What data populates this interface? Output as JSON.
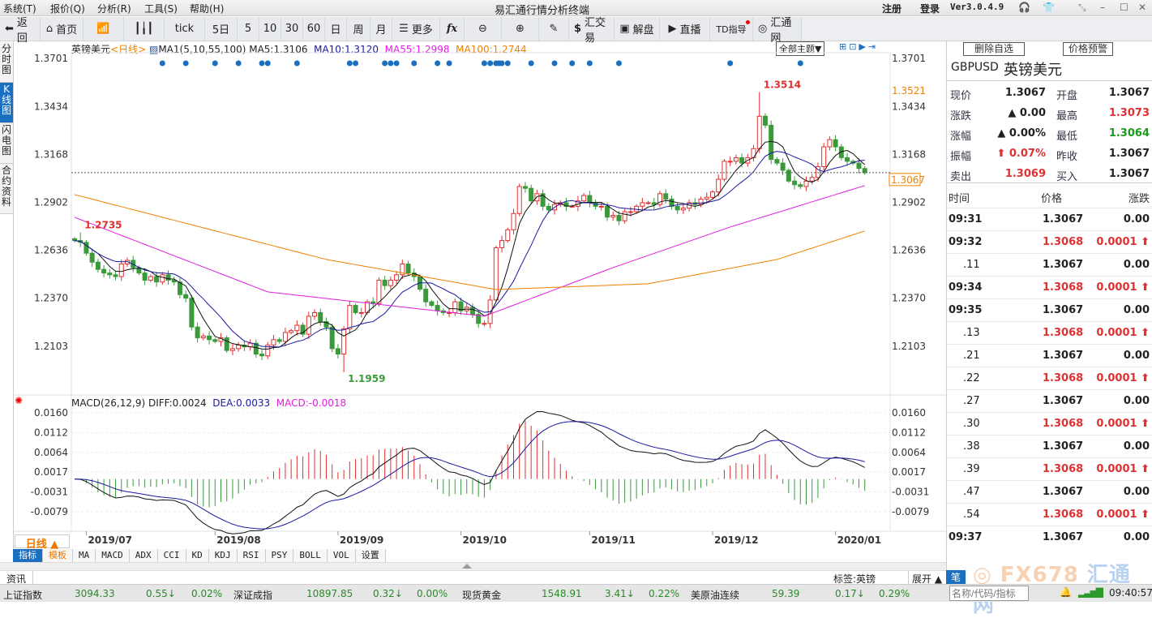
{
  "menu": [
    "系统(T)",
    "报价(Q)",
    "分析(R)",
    "工具(S)",
    "帮助(H)"
  ],
  "title": "易汇通行情分析终端",
  "account": {
    "register": "注册",
    "login": "登录",
    "version": "Ver3.0.4.9"
  },
  "toolbar": [
    "返回",
    "首页",
    "",
    "",
    "tick",
    "5日",
    "5",
    "10",
    "30",
    "60",
    "日",
    "周",
    "月",
    "更多",
    "fx",
    "",
    "",
    "",
    "汇交易",
    "解盘",
    "直播",
    "TD指导",
    "汇通网"
  ],
  "vtabs": [
    "分时图",
    "K线图",
    "闪电图",
    "合约资料"
  ],
  "chart_header": {
    "name": "英镑美元",
    "period": "<日线>",
    "ma": "MA1(5,10,55,100)",
    "ma5": "MA5:1.3106",
    "ma10": "MA10:1.3120",
    "ma55": "MA55:1.2998",
    "ma100": "MA100:1.2744",
    "theme": "全部主题▼"
  },
  "macd_header": {
    "name": "MACD(26,12,9)",
    "diff": "DIFF:0.0024",
    "dea": "DEA:0.0033",
    "macd": "MACD:-0.0018"
  },
  "period_button": "日线 ▲",
  "indicator_tabs": [
    "指标",
    "模板",
    "MA",
    "MACD",
    "ADX",
    "CCI",
    "KD",
    "KDJ",
    "RSI",
    "PSY",
    "BOLL",
    "VOL",
    "设置"
  ],
  "chart_data": {
    "type": "candlestick",
    "price_ticks": [
      "1.3701",
      "1.3434",
      "1.3168",
      "1.2902",
      "1.2636",
      "1.2370",
      "1.2103"
    ],
    "price_range": [
      1.2103,
      1.3701
    ],
    "macd_ticks": [
      "0.0160",
      "0.0112",
      "0.0064",
      "0.0017",
      "-0.0031",
      "-0.0079"
    ],
    "macd_range": [
      -0.0079,
      0.016
    ],
    "x_labels": [
      {
        "label": "2019/07",
        "bar": 2
      },
      {
        "label": "2019/08",
        "bar": 24
      },
      {
        "label": "2019/09",
        "bar": 45
      },
      {
        "label": "2019/10",
        "bar": 66
      },
      {
        "label": "2019/11",
        "bar": 88
      },
      {
        "label": "2019/12",
        "bar": 109
      },
      {
        "label": "2020/01",
        "bar": 130
      }
    ],
    "closes": [
      1.269,
      1.268,
      1.262,
      1.257,
      1.253,
      1.251,
      1.25,
      1.249,
      1.256,
      1.258,
      1.254,
      1.251,
      1.247,
      1.249,
      1.246,
      1.25,
      1.247,
      1.246,
      1.239,
      1.237,
      1.221,
      1.215,
      1.216,
      1.214,
      1.213,
      1.215,
      1.208,
      1.209,
      1.211,
      1.21,
      1.212,
      1.206,
      1.205,
      1.211,
      1.214,
      1.213,
      1.218,
      1.219,
      1.222,
      1.217,
      1.227,
      1.229,
      1.224,
      1.221,
      1.209,
      1.206,
      1.22,
      1.233,
      1.229,
      1.229,
      1.235,
      1.234,
      1.247,
      1.244,
      1.247,
      1.25,
      1.256,
      1.251,
      1.249,
      1.242,
      1.235,
      1.233,
      1.23,
      1.229,
      1.229,
      1.235,
      1.23,
      1.232,
      1.228,
      1.223,
      1.223,
      1.236,
      1.265,
      1.269,
      1.275,
      1.284,
      1.299,
      1.298,
      1.291,
      1.295,
      1.288,
      1.286,
      1.289,
      1.29,
      1.288,
      1.288,
      1.291,
      1.294,
      1.29,
      1.288,
      1.288,
      1.282,
      1.283,
      1.28,
      1.285,
      1.285,
      1.288,
      1.29,
      1.29,
      1.289,
      1.295,
      1.292,
      1.288,
      1.286,
      1.287,
      1.29,
      1.289,
      1.292,
      1.293,
      1.296,
      1.303,
      1.313,
      1.313,
      1.315,
      1.312,
      1.315,
      1.32,
      1.338,
      1.333,
      1.314,
      1.312,
      1.308,
      1.302,
      1.3,
      1.299,
      1.302,
      1.304,
      1.31,
      1.321,
      1.325,
      1.321,
      1.315,
      1.313,
      1.312,
      1.309,
      1.3067
    ],
    "first_open": 1.27,
    "ma55": [
      [
        0,
        1.2819
      ],
      [
        33,
        1.2405
      ],
      [
        70,
        1.227
      ],
      [
        92,
        1.254
      ],
      [
        112,
        1.2765
      ],
      [
        135,
        1.2995
      ]
    ],
    "ma100": [
      [
        0,
        1.2945
      ],
      [
        43,
        1.2585
      ],
      [
        72,
        1.2418
      ],
      [
        98,
        1.245
      ],
      [
        120,
        1.2585
      ],
      [
        135,
        1.2743
      ]
    ],
    "annotations": [
      {
        "label": "1.3514",
        "bar": 117,
        "value": 1.3514,
        "color": "#e03030"
      },
      {
        "label": "1.2735",
        "bar": 1,
        "value": 1.2735,
        "color": "#e03030"
      },
      {
        "label": "1.1959",
        "bar": 46,
        "value": 1.1959,
        "color": "#3a9a3a"
      }
    ],
    "event_markers": [
      15,
      19,
      24,
      28,
      32,
      33,
      38,
      47,
      48,
      53,
      54,
      55,
      58,
      62,
      64,
      70,
      71,
      72,
      72.5,
      73,
      74,
      78,
      82,
      85,
      88,
      93,
      112,
      124
    ],
    "right_labels": {
      "high_mark": "1.3521",
      "last": "1.3067"
    }
  },
  "quote": {
    "buttons": [
      "删除自选",
      "价格预警"
    ],
    "symbol": "GBPUSD",
    "name": "英镑美元",
    "rows": [
      {
        "l1": "现价",
        "v1": "1.3067",
        "c1": "#222",
        "l2": "开盘",
        "v2": "1.3067",
        "c2": "#222"
      },
      {
        "l1": "涨跌",
        "v1": "▲ 0.00",
        "c1": "#222",
        "l2": "最高",
        "v2": "1.3073",
        "c2": "#e03030"
      },
      {
        "l1": "涨幅",
        "v1": "▲ 0.00%",
        "c1": "#222",
        "l2": "最低",
        "v2": "1.3064",
        "c2": "#1a9a1a"
      },
      {
        "l1": "振幅",
        "v1": "⬆ 0.07%",
        "c1": "#e03030",
        "l2": "昨收",
        "v2": "1.3067",
        "c2": "#222"
      },
      {
        "l1": "卖出",
        "v1": "1.3069",
        "c1": "#e03030",
        "l2": "买入",
        "v2": "1.3067",
        "c2": "#222"
      }
    ],
    "tick_headers": [
      "时间",
      "价格",
      "涨跌"
    ],
    "ticks": [
      {
        "t": "09:31",
        "p": "1.3067",
        "c": "0.00",
        "up": false
      },
      {
        "t": "09:32",
        "p": "1.3068",
        "c": "0.0001 ⬆",
        "up": true
      },
      {
        "t": ".11",
        "p": "1.3067",
        "c": "0.00",
        "up": false
      },
      {
        "t": "09:34",
        "p": "1.3068",
        "c": "0.0001 ⬆",
        "up": true
      },
      {
        "t": "09:35",
        "p": "1.3067",
        "c": "0.00",
        "up": false
      },
      {
        "t": ".13",
        "p": "1.3068",
        "c": "0.0001 ⬆",
        "up": true
      },
      {
        "t": ".21",
        "p": "1.3067",
        "c": "0.00",
        "up": false
      },
      {
        "t": ".22",
        "p": "1.3068",
        "c": "0.0001 ⬆",
        "up": true
      },
      {
        "t": ".27",
        "p": "1.3067",
        "c": "0.00",
        "up": false
      },
      {
        "t": ".30",
        "p": "1.3068",
        "c": "0.0001 ⬆",
        "up": true
      },
      {
        "t": ".38",
        "p": "1.3067",
        "c": "0.00",
        "up": false
      },
      {
        "t": ".39",
        "p": "1.3068",
        "c": "0.0001 ⬆",
        "up": true
      },
      {
        "t": ".47",
        "p": "1.3067",
        "c": "0.00",
        "up": false
      },
      {
        "t": ".54",
        "p": "1.3068",
        "c": "0.0001 ⬆",
        "up": true
      },
      {
        "t": "09:37",
        "p": "1.3067",
        "c": "0.00",
        "up": false
      }
    ]
  },
  "news": {
    "tab": "资讯",
    "tag": "标签:英镑",
    "expand": "展开 ▲",
    "pen": "笔"
  },
  "logo": "FX678 汇通网",
  "ticker": [
    {
      "name": "上证指数",
      "v": "3094.33",
      "ch": "0.55↓",
      "pct": "0.02%"
    },
    {
      "name": "深证成指",
      "v": "10897.85",
      "ch": "0.32↓",
      "pct": "0.00%"
    },
    {
      "name": "现货黄金",
      "v": "1548.91",
      "ch": "3.41↓",
      "pct": "0.22%"
    },
    {
      "name": "美原油连续",
      "v": "59.39",
      "ch": "0.17↓",
      "pct": "0.29%"
    }
  ],
  "search_placeholder": "名称/代码/指标",
  "clock": "09:40:57"
}
